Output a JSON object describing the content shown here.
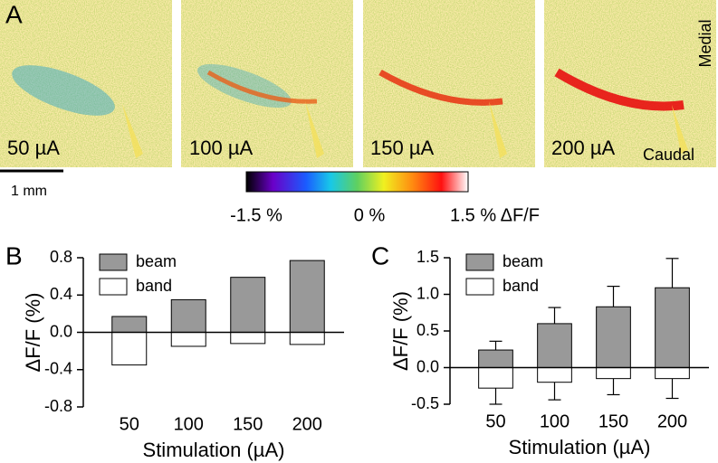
{
  "panel_a": {
    "label": "A",
    "images": [
      {
        "label": "50 µA"
      },
      {
        "label": "100 µA"
      },
      {
        "label": "150 µA"
      },
      {
        "label": "200 µA"
      }
    ],
    "medial": "Medial",
    "caudal": "Caudal",
    "scale_bar": "1 mm",
    "colorbar": {
      "min_label": "-1.5 %",
      "mid_label": "0 %",
      "max_label": "1.5 % ΔF/F"
    }
  },
  "chart_data": [
    {
      "type": "bar",
      "panel": "B",
      "x_label": "Stimulation (µA)",
      "y_label": "ΔF/F (%)",
      "categories": [
        "50",
        "100",
        "150",
        "200"
      ],
      "series": [
        {
          "name": "beam",
          "color": "#999999",
          "values": [
            0.17,
            0.35,
            0.59,
            0.77
          ]
        },
        {
          "name": "band",
          "color": "#ffffff",
          "values": [
            -0.35,
            -0.15,
            -0.12,
            -0.13
          ]
        }
      ],
      "ylim": [
        -0.8,
        0.8
      ],
      "yticks": [
        0.8,
        0.4,
        {
          "value": 0,
          "label": "0.0"
        },
        -0.4,
        -0.8
      ]
    },
    {
      "type": "bar",
      "panel": "C",
      "x_label": "Stimulation (µA)",
      "y_label": "ΔF/F (%)",
      "categories": [
        "50",
        "100",
        "150",
        "200"
      ],
      "series": [
        {
          "name": "beam",
          "color": "#999999",
          "values": [
            0.24,
            0.6,
            0.83,
            1.09
          ],
          "errors": [
            0.12,
            0.22,
            0.28,
            0.4
          ]
        },
        {
          "name": "band",
          "color": "#ffffff",
          "values": [
            -0.28,
            -0.2,
            -0.15,
            -0.15
          ],
          "errors": [
            0.22,
            0.24,
            0.22,
            0.27
          ]
        }
      ],
      "ylim": [
        -0.5,
        1.5
      ],
      "yticks": [
        1.5,
        {
          "value": 1,
          "label": "1.0"
        },
        0.5,
        {
          "value": 0,
          "label": "0.0"
        },
        -0.5
      ]
    }
  ]
}
